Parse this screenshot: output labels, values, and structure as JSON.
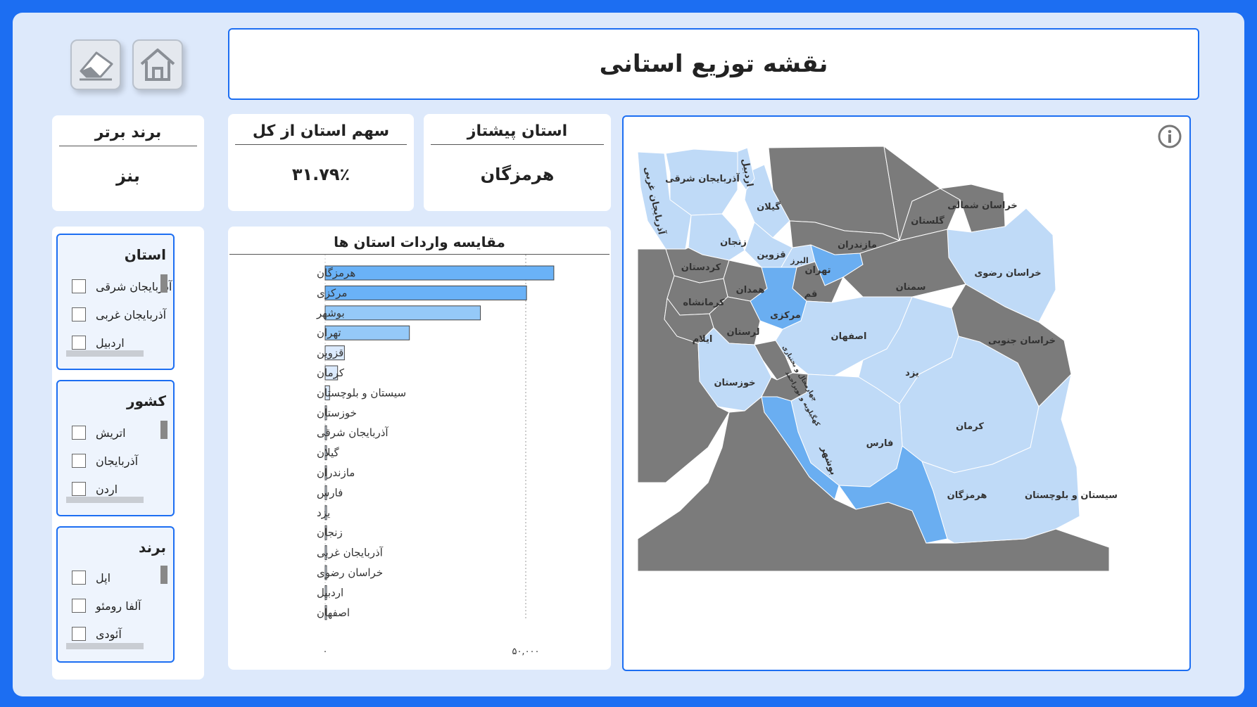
{
  "header": {
    "title": "نقشه توزیع استانی"
  },
  "toolbar": {
    "home_icon": "home-icon",
    "eraser_icon": "eraser-icon"
  },
  "kpis": {
    "top_brand": {
      "title": "برند برتر",
      "value": "بنز"
    },
    "province_share": {
      "title": "سهم استان از کل",
      "value": "۳۱.۷۹٪"
    },
    "leading_province": {
      "title": "استان پیشتاز",
      "value": "هرمزگان"
    }
  },
  "slicers": {
    "province": {
      "title": "استان",
      "items": [
        "آذربایجان شرقی",
        "آذربایجان غربی",
        "اردبیل"
      ]
    },
    "country": {
      "title": "کشور",
      "items": [
        "اتریش",
        "آذربایجان",
        "اردن"
      ]
    },
    "brand": {
      "title": "برند",
      "items": [
        "اپل",
        "آلفا رومئو",
        "آئودی"
      ]
    }
  },
  "chart_data": {
    "type": "bar",
    "orientation": "horizontal",
    "title": "مقایسه واردات استان ها",
    "categories": [
      "هرمزگان",
      "مرکزی",
      "بوشهر",
      "تهران",
      "قزوین",
      "کرمان",
      "سیستان و بلوچستان",
      "خوزستان",
      "آذربایجان شرقی",
      "گیلان",
      "مازندران",
      "فارس",
      "یزد",
      "زنجان",
      "آذربایجان غربی",
      "خراسان رضوی",
      "اردبیل",
      "اصفهان"
    ],
    "values": [
      57000,
      50200,
      38700,
      21000,
      4800,
      3100,
      1100,
      300,
      300,
      300,
      300,
      200,
      200,
      200,
      200,
      200,
      200,
      200
    ],
    "x_ticks": [
      0,
      50000
    ],
    "x_tick_labels": [
      "۰",
      "۵۰,۰۰۰"
    ],
    "xlim": [
      0,
      60000
    ],
    "colors": {
      "high": "#6ab2f7",
      "mid": "#95c9f8",
      "low": "#dbeafd"
    }
  },
  "map": {
    "info_icon": "info-icon",
    "colors": {
      "dark": "#7b7b7b",
      "light": "#bfdaf7",
      "mid": "#6aaef1"
    },
    "province_labels": {
      "azarbaijan_sharghi": "آذربایجان شرقی",
      "azarbaijan_gharbi": "آذربایجان غربی",
      "ardabil": "اردبیل",
      "gilan": "گیلان",
      "zanjan": "زنجان",
      "qazvin": "قزوین",
      "alborz": "البرز",
      "tehran": "تهران",
      "mazandaran": "مازندران",
      "golestan": "گلستان",
      "khorasan_shomali": "خراسان شمالی",
      "khorasan_razavi": "خراسان رضوی",
      "semnan": "سمنان",
      "kordestan": "کردستان",
      "hamedan": "همدان",
      "qom": "قم",
      "markazi": "مرکزی",
      "kermanshah": "کرمانشاه",
      "lorestan": "لرستان",
      "ilam": "ایلام",
      "esfahan": "اصفهان",
      "khorasan_jonoobi": "خراسان جنوبی",
      "khuzestan": "خوزستان",
      "yazd": "یزد",
      "chaharmahal": "چهارمحال و بختیاری",
      "kohgiluyeh": "کهگیلویه و بویراحمد",
      "kerman": "کرمان",
      "fars": "فارس",
      "bushehr": "بوشهر",
      "hormozgan": "هرمزگان",
      "sistan": "سیستان و بلوچستان"
    }
  }
}
